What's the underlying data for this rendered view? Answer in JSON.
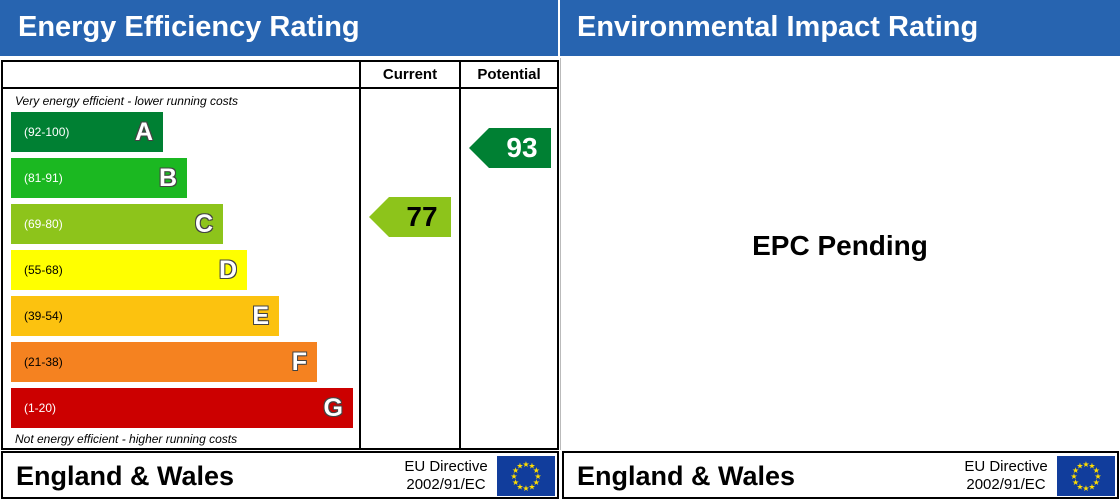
{
  "energy": {
    "title": "Energy Efficiency Rating",
    "col_current": "Current",
    "col_potential": "Potential",
    "top_caption": "Very energy efficient - lower running costs",
    "bottom_caption": "Not energy efficient - higher running costs",
    "bands": [
      {
        "range": "(92-100)",
        "letter": "A",
        "color": "#008033"
      },
      {
        "range": "(81-91)",
        "letter": "B",
        "color": "#1bb821"
      },
      {
        "range": "(69-80)",
        "letter": "C",
        "color": "#8dc41b"
      },
      {
        "range": "(55-68)",
        "letter": "D",
        "color": "#ffff00"
      },
      {
        "range": "(39-54)",
        "letter": "E",
        "color": "#fcc20f"
      },
      {
        "range": "(21-38)",
        "letter": "F",
        "color": "#f58220"
      },
      {
        "range": "(1-20)",
        "letter": "G",
        "color": "#cc0000"
      }
    ],
    "current": {
      "value": "77",
      "band": "C",
      "color": "#8dc41b"
    },
    "potential": {
      "value": "93",
      "band": "A",
      "color": "#008033"
    },
    "footer": {
      "country": "England & Wales",
      "directive_line1": "EU Directive",
      "directive_line2": "2002/91/EC"
    }
  },
  "environment": {
    "title": "Environmental Impact Rating",
    "status": "EPC Pending",
    "footer": {
      "country": "England & Wales",
      "directive_line1": "EU Directive",
      "directive_line2": "2002/91/EC"
    }
  },
  "colors": {
    "header": "#2764b0",
    "eu_flag": "#113d9c",
    "eu_stars": "#ffdd00"
  }
}
